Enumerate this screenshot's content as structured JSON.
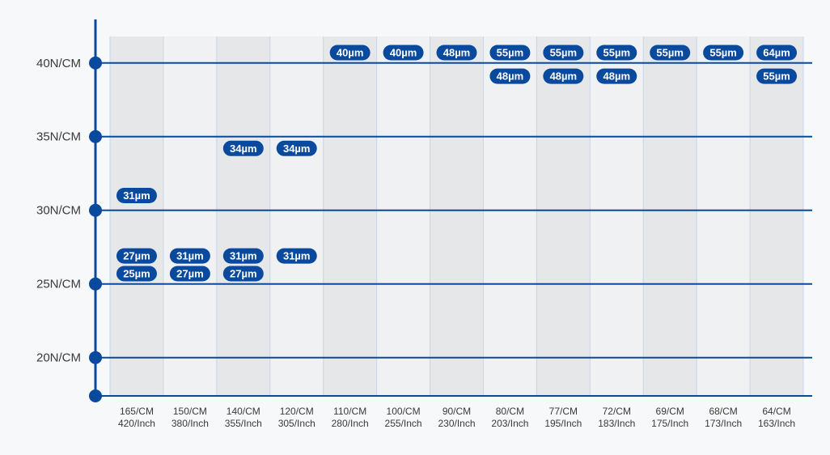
{
  "chart_data": {
    "type": "table",
    "categories": [
      [
        "165/CM",
        "420/Inch"
      ],
      [
        "150/CM",
        "380/Inch"
      ],
      [
        "140/CM",
        "355/Inch"
      ],
      [
        "120/CM",
        "305/Inch"
      ],
      [
        "110/CM",
        "280/Inch"
      ],
      [
        "100/CM",
        "255/Inch"
      ],
      [
        "90/CM",
        "230/Inch"
      ],
      [
        "80/CM",
        "203/Inch"
      ],
      [
        "77/CM",
        "195/Inch"
      ],
      [
        "72/CM",
        "183/Inch"
      ],
      [
        "69/CM",
        "175/Inch"
      ],
      [
        "68/CM",
        "173/Inch"
      ],
      [
        "64/CM",
        "163/Inch"
      ]
    ],
    "y_ticks": [
      {
        "value": 20,
        "label": "20N/CM"
      },
      {
        "value": 25,
        "label": "25N/CM"
      },
      {
        "value": 30,
        "label": "30N/CM"
      },
      {
        "value": 35,
        "label": "35N/CM"
      },
      {
        "value": 40,
        "label": "40N/CM"
      }
    ],
    "ylim": [
      17.4,
      41.8
    ],
    "points": [
      {
        "col": 0,
        "y": 31.0,
        "label": "31µm"
      },
      {
        "col": 0,
        "y": 26.9,
        "label": "27µm"
      },
      {
        "col": 0,
        "y": 25.7,
        "label": "25µm"
      },
      {
        "col": 1,
        "y": 26.9,
        "label": "31µm"
      },
      {
        "col": 1,
        "y": 25.7,
        "label": "27µm"
      },
      {
        "col": 2,
        "y": 34.2,
        "label": "34µm"
      },
      {
        "col": 2,
        "y": 26.9,
        "label": "31µm"
      },
      {
        "col": 2,
        "y": 25.7,
        "label": "27µm"
      },
      {
        "col": 3,
        "y": 34.2,
        "label": "34µm"
      },
      {
        "col": 3,
        "y": 26.9,
        "label": "31µm"
      },
      {
        "col": 4,
        "y": 40.7,
        "label": "40µm"
      },
      {
        "col": 5,
        "y": 40.7,
        "label": "40µm"
      },
      {
        "col": 6,
        "y": 40.7,
        "label": "48µm"
      },
      {
        "col": 7,
        "y": 40.7,
        "label": "55µm"
      },
      {
        "col": 7,
        "y": 39.1,
        "label": "48µm"
      },
      {
        "col": 8,
        "y": 40.7,
        "label": "55µm"
      },
      {
        "col": 8,
        "y": 39.1,
        "label": "48µm"
      },
      {
        "col": 9,
        "y": 40.7,
        "label": "55µm"
      },
      {
        "col": 9,
        "y": 39.1,
        "label": "48µm"
      },
      {
        "col": 10,
        "y": 40.7,
        "label": "55µm"
      },
      {
        "col": 11,
        "y": 40.7,
        "label": "55µm"
      },
      {
        "col": 12,
        "y": 40.7,
        "label": "64µm"
      },
      {
        "col": 12,
        "y": 39.1,
        "label": "55µm"
      }
    ],
    "grid": true,
    "colors": {
      "accent": "#0a4a9e",
      "band_dark": "#e6e7e8",
      "band_light": "#f0f1f2",
      "column_divider": "#c5d6ea",
      "tick_text": "#3a3a3a",
      "pill_text": "#ffffff",
      "background": "#f7f8f9"
    }
  }
}
